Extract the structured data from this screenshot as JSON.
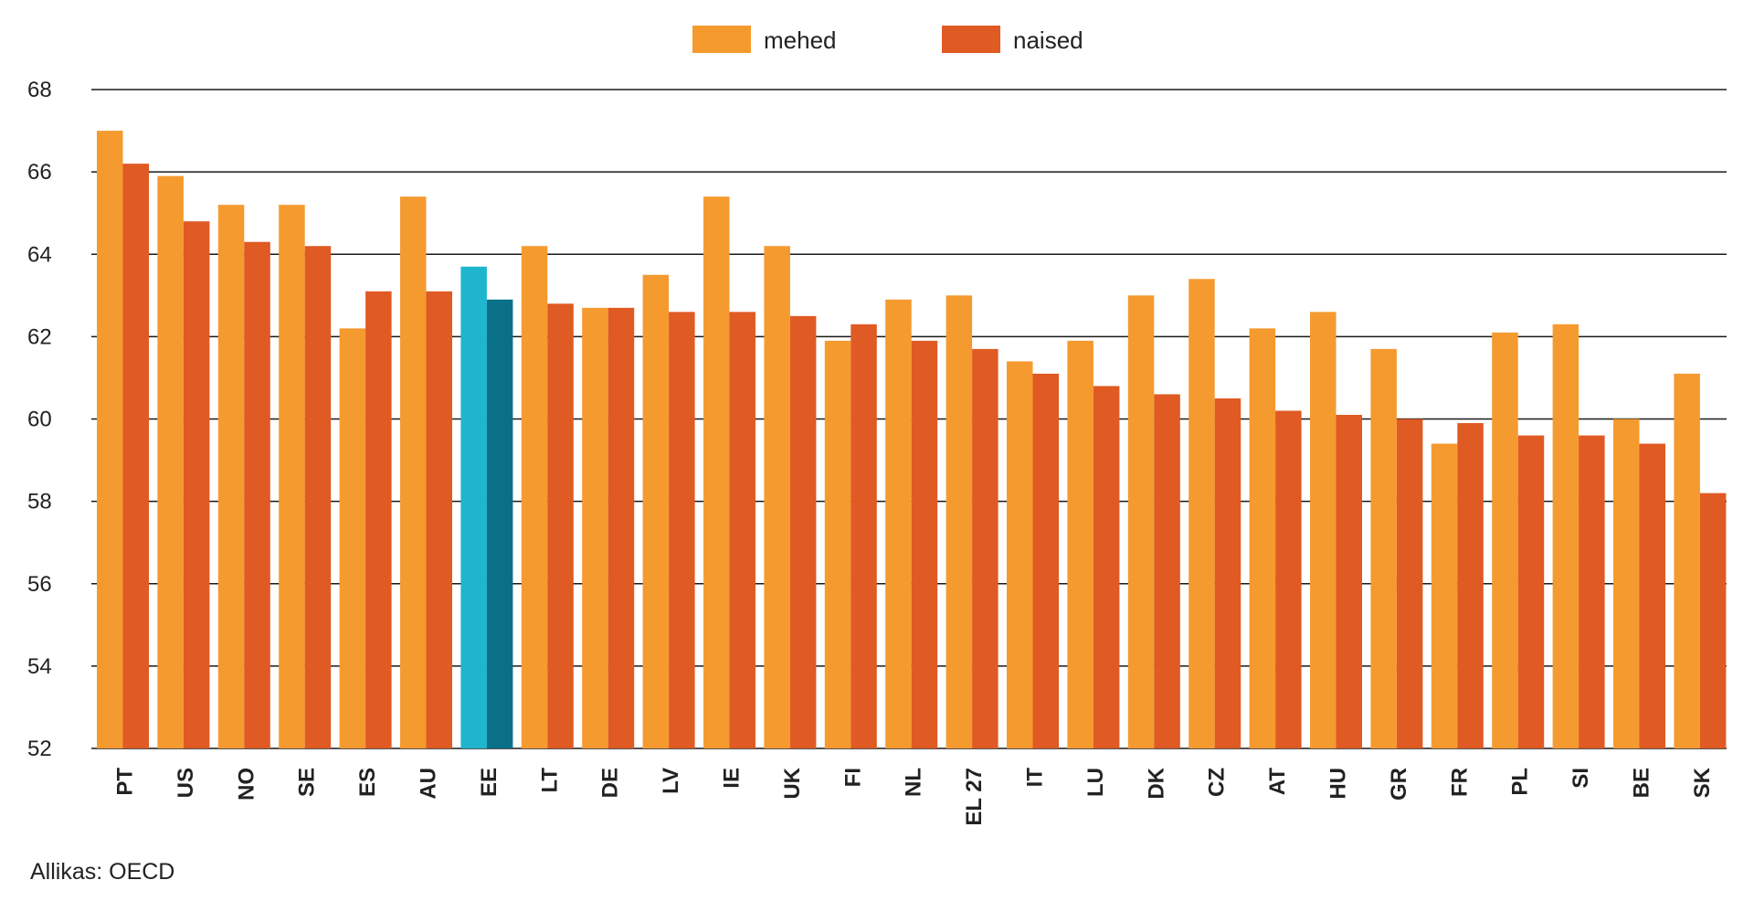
{
  "chart_data": {
    "type": "bar",
    "categories": [
      "PT",
      "US",
      "NO",
      "SE",
      "ES",
      "AU",
      "EE",
      "LT",
      "DE",
      "LV",
      "IE",
      "UK",
      "FI",
      "NL",
      "EL 27",
      "IT",
      "LU",
      "DK",
      "CZ",
      "AT",
      "HU",
      "GR",
      "FR",
      "PL",
      "SI",
      "BE",
      "SK"
    ],
    "series": [
      {
        "name": "mehed",
        "color": "#f59a2f",
        "values": [
          67.0,
          65.9,
          65.2,
          65.2,
          62.2,
          65.4,
          63.7,
          64.2,
          62.7,
          63.5,
          65.4,
          64.2,
          61.9,
          62.9,
          63.0,
          61.4,
          61.9,
          63.0,
          63.4,
          62.2,
          62.6,
          61.7,
          59.4,
          62.1,
          62.3,
          60.0,
          61.1
        ]
      },
      {
        "name": "naised",
        "color": "#e05a24",
        "values": [
          66.2,
          64.8,
          64.3,
          64.2,
          63.1,
          63.1,
          62.9,
          62.8,
          62.7,
          62.6,
          62.6,
          62.5,
          62.3,
          61.9,
          61.7,
          61.1,
          60.8,
          60.6,
          60.5,
          60.2,
          60.1,
          60.0,
          59.9,
          59.6,
          59.6,
          59.4,
          58.2
        ]
      }
    ],
    "highlight": {
      "category": "EE",
      "colors": {
        "mehed": "#1fb5cf",
        "naised": "#0a7088"
      }
    },
    "ylim": [
      52,
      68
    ],
    "yticks": [
      52,
      54,
      56,
      58,
      60,
      62,
      64,
      66,
      68
    ],
    "grid": true,
    "legend_position": "top-center",
    "source": "Allikas: OECD"
  }
}
